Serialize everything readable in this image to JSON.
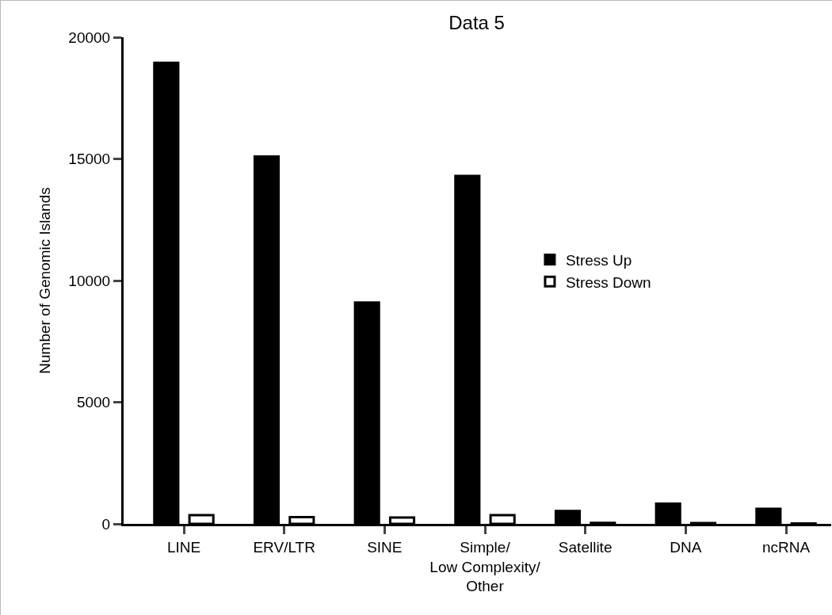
{
  "chart_data": {
    "type": "bar",
    "title": "Data 5",
    "ylabel": "Number of Genomic Islands",
    "categories": [
      "LINE",
      "ERV/LTR",
      "SINE",
      "Simple/ Low Complexity/ Other",
      "Satellite",
      "DNA",
      "ncRNA"
    ],
    "series": [
      {
        "name": "Stress Up",
        "color": "#000000",
        "values": [
          18950,
          15100,
          9100,
          14300,
          530,
          830,
          620
        ]
      },
      {
        "name": "Stress Down",
        "color": "#ffffff",
        "values": [
          360,
          280,
          260,
          360,
          40,
          30,
          20
        ]
      }
    ],
    "ylim": [
      0,
      20000
    ],
    "yticks": [
      0,
      5000,
      10000,
      15000,
      20000
    ],
    "grid": false,
    "legend": "right"
  }
}
